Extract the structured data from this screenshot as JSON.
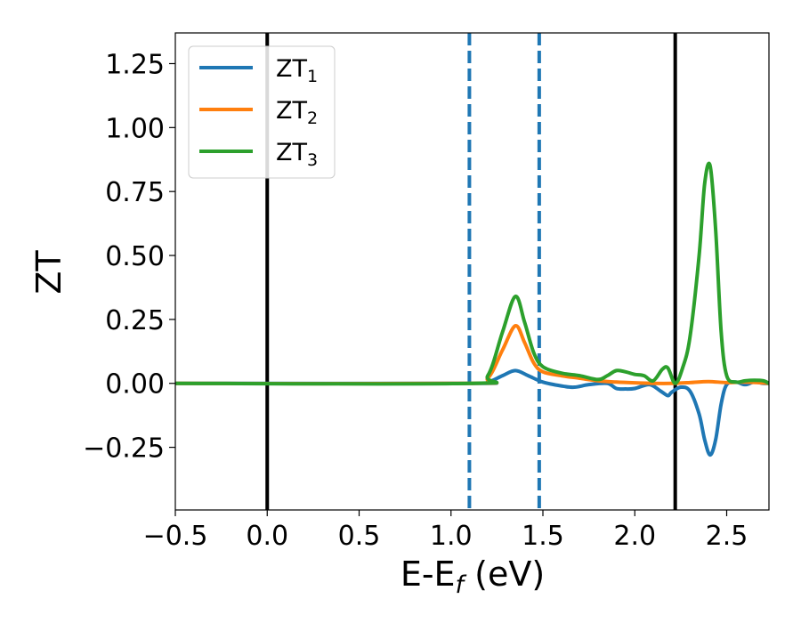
{
  "chart_data": {
    "type": "line",
    "xlabel": {
      "main": "E-E",
      "sub": "f",
      "unit": " (eV)"
    },
    "ylabel": "ZT",
    "xlim": [
      -0.5,
      2.73
    ],
    "ylim": [
      -0.495,
      1.37
    ],
    "xticks": [
      -0.5,
      0.0,
      0.5,
      1.0,
      1.5,
      2.0,
      2.5
    ],
    "xtick_labels": [
      "−0.5",
      "0.0",
      "0.5",
      "1.0",
      "1.5",
      "2.0",
      "2.5"
    ],
    "yticks": [
      -0.25,
      0.0,
      0.25,
      0.5,
      0.75,
      1.0,
      1.25
    ],
    "ytick_labels": [
      "−0.25",
      "0.00",
      "0.25",
      "0.50",
      "0.75",
      "1.00",
      "1.25"
    ],
    "grid": false,
    "legend_position": "top-left",
    "vlines": [
      {
        "x": 0.0,
        "style": "solid",
        "color": "#000000"
      },
      {
        "x": 2.22,
        "style": "solid",
        "color": "#000000"
      },
      {
        "x": 1.1,
        "style": "dashed",
        "color": "#1f77b4"
      },
      {
        "x": 1.48,
        "style": "dashed",
        "color": "#1f77b4"
      }
    ],
    "series": [
      {
        "name": "ZT",
        "name_sub": "1",
        "color": "#1f77b4",
        "x": [
          -0.5,
          1.1,
          1.2,
          1.28,
          1.35,
          1.42,
          1.5,
          1.6,
          1.67,
          1.75,
          1.85,
          1.9,
          1.95,
          2.0,
          2.08,
          2.14,
          2.18,
          2.2,
          2.25,
          2.3,
          2.35,
          2.38,
          2.41,
          2.44,
          2.47,
          2.5,
          2.55,
          2.6,
          2.65,
          2.7,
          2.73
        ],
        "y": [
          0,
          0,
          0.005,
          0.03,
          0.05,
          0.03,
          0.005,
          -0.01,
          -0.015,
          -0.005,
          0.0,
          -0.02,
          -0.022,
          -0.02,
          -0.005,
          -0.03,
          -0.048,
          -0.035,
          -0.015,
          -0.03,
          -0.12,
          -0.22,
          -0.28,
          -0.22,
          -0.08,
          -0.005,
          0.005,
          -0.005,
          0.005,
          0.0,
          0.0
        ]
      },
      {
        "name": "ZT",
        "name_sub": "2",
        "color": "#ff7f0e",
        "x": [
          -0.5,
          1.1,
          1.2,
          1.28,
          1.35,
          1.4,
          1.45,
          1.5,
          1.6,
          1.7,
          1.8,
          1.9,
          2.0,
          2.1,
          2.2,
          2.3,
          2.4,
          2.5,
          2.6,
          2.73
        ],
        "y": [
          0,
          0,
          0.02,
          0.13,
          0.225,
          0.16,
          0.08,
          0.045,
          0.03,
          0.02,
          0.01,
          0.005,
          0.002,
          0.0,
          0.0,
          0.003,
          0.007,
          0.003,
          0.005,
          0.0
        ]
      },
      {
        "name": "ZT",
        "name_sub": "3",
        "color": "#2ca02c",
        "x": [
          -0.5,
          1.1,
          1.2,
          1.28,
          1.35,
          1.4,
          1.45,
          1.5,
          1.6,
          1.7,
          1.8,
          1.85,
          1.9,
          1.95,
          2.0,
          2.05,
          2.1,
          2.15,
          2.18,
          2.22,
          2.26,
          2.3,
          2.35,
          2.38,
          2.41,
          2.44,
          2.47,
          2.5,
          2.55,
          2.6,
          2.65,
          2.7,
          2.73
        ],
        "y": [
          0,
          0,
          0.03,
          0.2,
          0.34,
          0.24,
          0.12,
          0.065,
          0.04,
          0.03,
          0.015,
          0.03,
          0.05,
          0.045,
          0.035,
          0.03,
          0.01,
          0.055,
          0.06,
          0.0,
          0.06,
          0.18,
          0.5,
          0.78,
          0.85,
          0.6,
          0.2,
          0.03,
          0.005,
          0.01,
          0.012,
          0.01,
          0.0
        ]
      }
    ]
  }
}
